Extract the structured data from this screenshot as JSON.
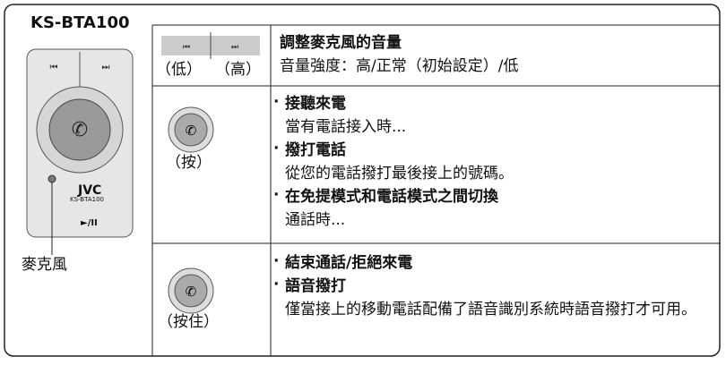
{
  "device": {
    "model": "KS-BTA100",
    "brand": "JVC",
    "model_small": "KS-BTA100",
    "play_pause": "►/II",
    "mic_label": "麥克風"
  },
  "table": {
    "rows": [
      {
        "control_labels": [
          "（低）",
          "（高）"
        ],
        "items": [
          {
            "title": "調整麥克風的音量",
            "desc": "音量強度：高/正常（初始設定）/低"
          }
        ]
      },
      {
        "control_labels": [
          "（按）"
        ],
        "items": [
          {
            "title": "接聽來電",
            "desc": "當有電話接入時..."
          },
          {
            "title": "撥打電話",
            "desc": "從您的電話撥打最後接上的號碼。"
          },
          {
            "title": "在免提模式和電話模式之間切換",
            "desc": "通話時..."
          }
        ]
      },
      {
        "control_labels": [
          "（按住）"
        ],
        "items": [
          {
            "title": "結束通話/拒絕來電"
          },
          {
            "title": "語音撥打",
            "desc": "僅當接上的移動電話配備了語音識別系統時語音撥打才可用。"
          }
        ]
      }
    ]
  }
}
